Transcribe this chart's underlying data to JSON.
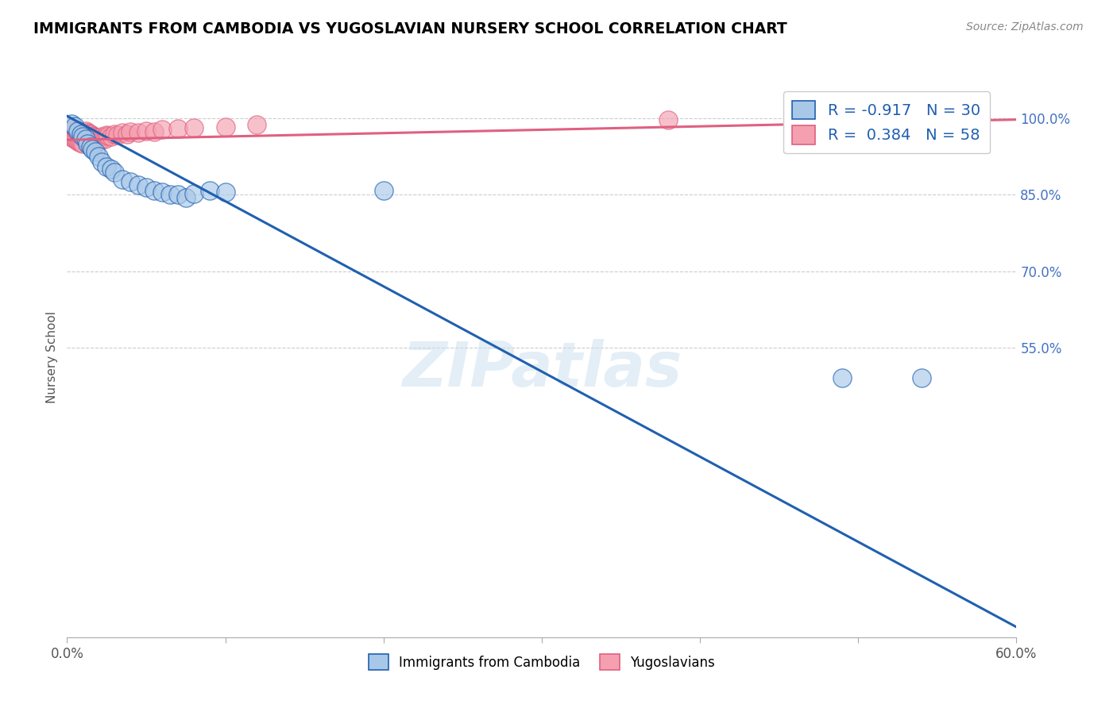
{
  "title": "IMMIGRANTS FROM CAMBODIA VS YUGOSLAVIAN NURSERY SCHOOL CORRELATION CHART",
  "source": "Source: ZipAtlas.com",
  "ylabel": "Nursery School",
  "xlim": [
    0.0,
    0.6
  ],
  "ylim": [
    -0.02,
    1.08
  ],
  "yticks": [
    0.55,
    0.7,
    0.85,
    1.0
  ],
  "ytick_labels": [
    "55.0%",
    "70.0%",
    "85.0%",
    "100.0%"
  ],
  "xticks": [
    0.0,
    0.1,
    0.2,
    0.3,
    0.4,
    0.5,
    0.6
  ],
  "xtick_labels": [
    "0.0%",
    "",
    "",
    "",
    "",
    "",
    "60.0%"
  ],
  "legend_blue_label": "Immigrants from Cambodia",
  "legend_pink_label": "Yugoslavians",
  "R_blue": -0.917,
  "N_blue": 30,
  "R_pink": 0.384,
  "N_pink": 58,
  "blue_color": "#a8c8e8",
  "pink_color": "#f4a0b0",
  "blue_line_color": "#2060b0",
  "pink_line_color": "#e06080",
  "watermark": "ZIPatlas",
  "blue_line_x": [
    0.0,
    0.6
  ],
  "blue_line_y": [
    1.005,
    0.0
  ],
  "pink_line_x": [
    0.0,
    0.6
  ],
  "pink_line_y": [
    0.958,
    0.998
  ],
  "blue_scatter_x": [
    0.003,
    0.005,
    0.007,
    0.009,
    0.01,
    0.012,
    0.013,
    0.015,
    0.016,
    0.018,
    0.02,
    0.022,
    0.025,
    0.028,
    0.03,
    0.035,
    0.04,
    0.045,
    0.05,
    0.055,
    0.06,
    0.065,
    0.07,
    0.075,
    0.08,
    0.09,
    0.1,
    0.2,
    0.49,
    0.54
  ],
  "blue_scatter_y": [
    0.99,
    0.985,
    0.975,
    0.97,
    0.965,
    0.96,
    0.95,
    0.945,
    0.94,
    0.935,
    0.925,
    0.915,
    0.905,
    0.9,
    0.895,
    0.88,
    0.875,
    0.87,
    0.865,
    0.858,
    0.855,
    0.85,
    0.85,
    0.845,
    0.852,
    0.858,
    0.856,
    0.858,
    0.49,
    0.49
  ],
  "pink_scatter_x": [
    0.001,
    0.002,
    0.002,
    0.003,
    0.003,
    0.004,
    0.004,
    0.005,
    0.005,
    0.006,
    0.006,
    0.007,
    0.007,
    0.008,
    0.008,
    0.009,
    0.009,
    0.01,
    0.01,
    0.011,
    0.011,
    0.012,
    0.012,
    0.013,
    0.013,
    0.014,
    0.014,
    0.015,
    0.015,
    0.016,
    0.016,
    0.017,
    0.017,
    0.018,
    0.018,
    0.019,
    0.02,
    0.021,
    0.022,
    0.023,
    0.024,
    0.025,
    0.026,
    0.028,
    0.03,
    0.032,
    0.035,
    0.038,
    0.04,
    0.045,
    0.05,
    0.055,
    0.06,
    0.07,
    0.08,
    0.1,
    0.12,
    0.38
  ],
  "pink_scatter_y": [
    0.97,
    0.972,
    0.968,
    0.975,
    0.965,
    0.978,
    0.962,
    0.98,
    0.96,
    0.975,
    0.958,
    0.972,
    0.956,
    0.97,
    0.954,
    0.968,
    0.952,
    0.966,
    0.95,
    0.964,
    0.968,
    0.962,
    0.975,
    0.96,
    0.973,
    0.958,
    0.971,
    0.956,
    0.969,
    0.954,
    0.967,
    0.953,
    0.965,
    0.951,
    0.963,
    0.961,
    0.959,
    0.957,
    0.964,
    0.962,
    0.96,
    0.968,
    0.966,
    0.964,
    0.97,
    0.968,
    0.972,
    0.97,
    0.974,
    0.972,
    0.976,
    0.974,
    0.978,
    0.98,
    0.982,
    0.984,
    0.988,
    0.998
  ]
}
